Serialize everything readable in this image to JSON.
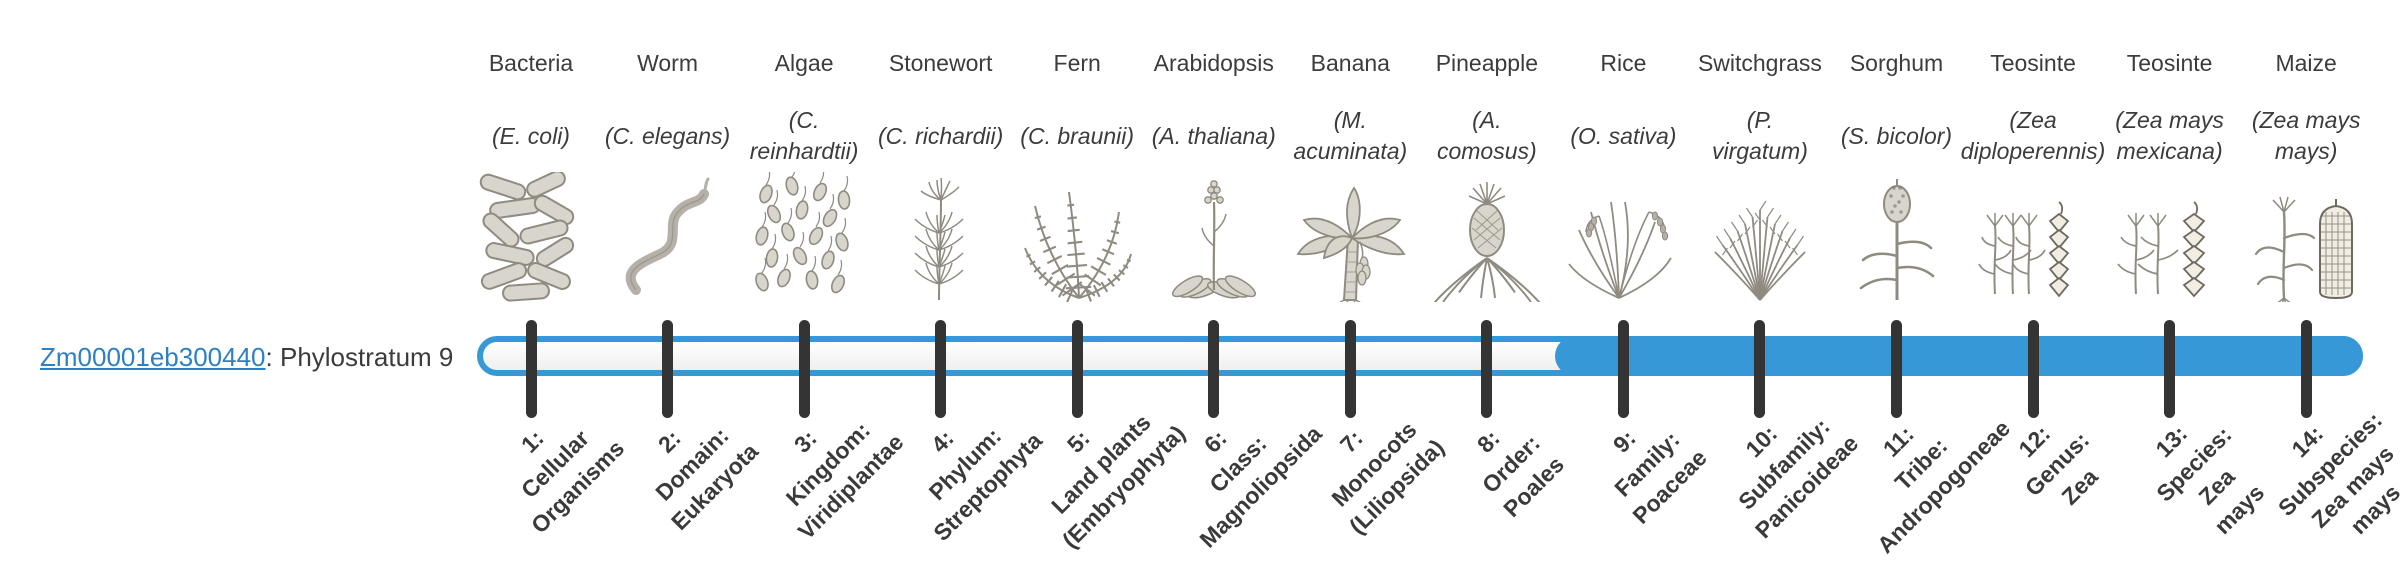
{
  "gene": {
    "id": "Zm00001eb300440",
    "desc": ": Phylostratum 9",
    "phylostratum": 9
  },
  "colors": {
    "bar": "#3798d8",
    "track": "#f2f2f2",
    "tick": "#343434",
    "link": "#2e80c4",
    "text": "#3c3c3c"
  },
  "bar": {
    "num_strata": 14,
    "filled_from_stratum": 9
  },
  "taxa": [
    {
      "common": "Bacteria",
      "scientific": "(E. coli)",
      "icon": "bacteria-icon",
      "stratum": "1:\nCellular\nOrganisms"
    },
    {
      "common": "Worm",
      "scientific": "(C. elegans)",
      "icon": "worm-icon",
      "stratum": "2:\nDomain:\nEukaryota"
    },
    {
      "common": "Algae",
      "scientific": "(C.\nreinhardtii)",
      "icon": "algae-icon",
      "stratum": "3:\nKingdom:\nViridiplantae"
    },
    {
      "common": "Stonewort",
      "scientific": "(C. richardii)",
      "icon": "stonewort-icon",
      "stratum": "4:\nPhylum:\nStreptophyta"
    },
    {
      "common": "Fern",
      "scientific": "(C. braunii)",
      "icon": "fern-icon",
      "stratum": "5:\nLand plants\n(Embryophyta)"
    },
    {
      "common": "Arabidopsis",
      "scientific": "(A. thaliana)",
      "icon": "arabidopsis-icon",
      "stratum": "6:\nClass:\nMagnoliopsida"
    },
    {
      "common": "Banana",
      "scientific": "(M.\nacuminata)",
      "icon": "banana-icon",
      "stratum": "7:\nMonocots\n(Liliopsida)"
    },
    {
      "common": "Pineapple",
      "scientific": "(A.\ncomosus)",
      "icon": "pineapple-icon",
      "stratum": "8:\nOrder:\nPoales"
    },
    {
      "common": "Rice",
      "scientific": "(O. sativa)",
      "icon": "rice-icon",
      "stratum": "9:\nFamily:\nPoaceae"
    },
    {
      "common": "Switchgrass",
      "scientific": "(P.\nvirgatum)",
      "icon": "switchgrass-icon",
      "stratum": "10:\nSubfamily:\nPanicoideae"
    },
    {
      "common": "Sorghum",
      "scientific": "(S. bicolor)",
      "icon": "sorghum-icon",
      "stratum": "11:\nTribe:\nAndropogoneae"
    },
    {
      "common": "Teosinte",
      "scientific": "(Zea\ndiploperennis)",
      "icon": "teosinte-diploperennis-icon",
      "stratum": "12:\nGenus:\nZea"
    },
    {
      "common": "Teosinte",
      "scientific": "(Zea mays\nmexicana)",
      "icon": "teosinte-mexicana-icon",
      "stratum": "13:\nSpecies:\nZea\nmays"
    },
    {
      "common": "Maize",
      "scientific": "(Zea mays\nmays)",
      "icon": "maize-icon",
      "stratum": "14:\nSubspecies:\nZea mays\nmays"
    }
  ]
}
